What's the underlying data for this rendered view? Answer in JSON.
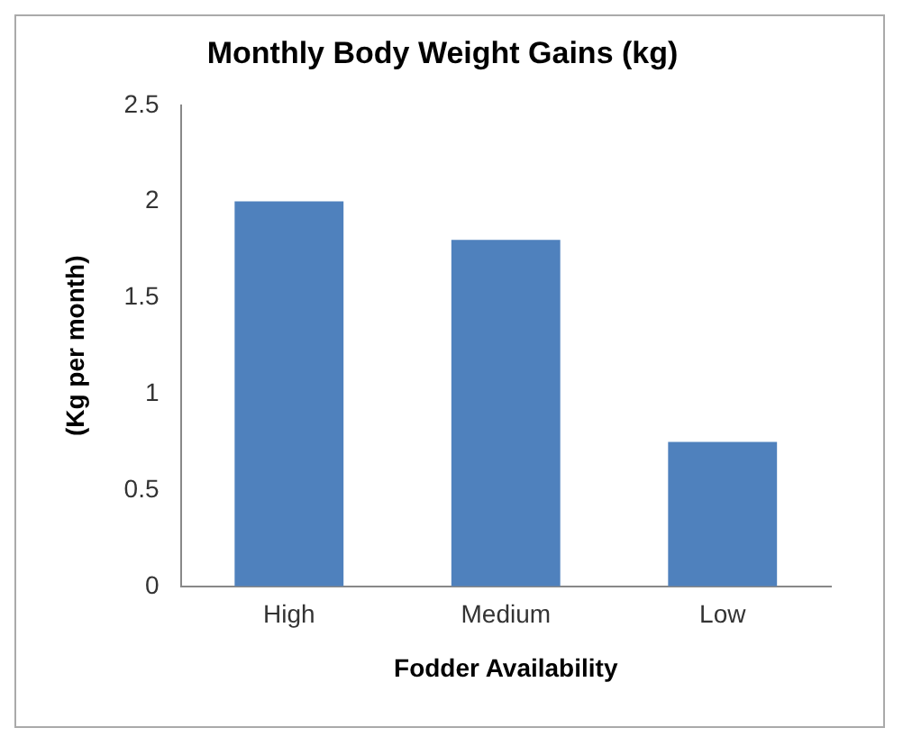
{
  "chart_data": {
    "type": "bar",
    "title": "Monthly Body Weight Gains (kg)",
    "xlabel": "Fodder Availability",
    "ylabel": "(Kg per month)",
    "categories": [
      "High",
      "Medium",
      "Low"
    ],
    "values": [
      2.0,
      1.8,
      0.75
    ],
    "color": "#4f81bd",
    "ylim": [
      0,
      2.5
    ],
    "yticks": [
      0,
      0.5,
      1,
      1.5,
      2,
      2.5
    ],
    "grid": false,
    "legend": false
  }
}
